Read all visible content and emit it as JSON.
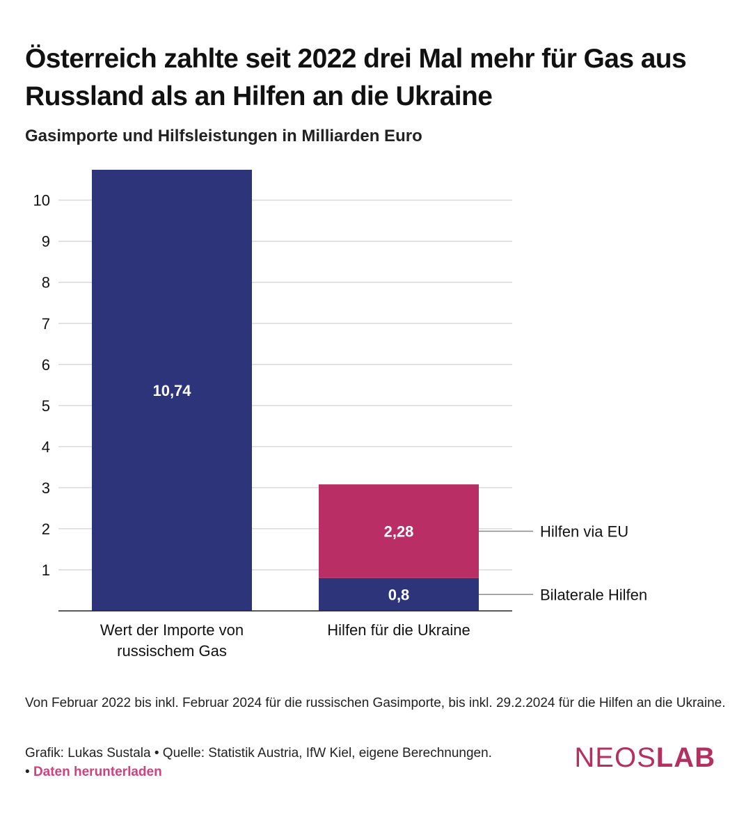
{
  "header": {
    "title": "Österreich zahlte seit 2022 drei Mal mehr für Gas aus Russland als an Hilfen an die Ukraine",
    "subtitle": "Gasimporte und Hilfsleistungen in Milliarden Euro"
  },
  "chart_data": {
    "type": "bar",
    "stacked": true,
    "unit": "Milliarden Euro",
    "categories": [
      [
        "Wert der Importe von",
        "russischem Gas"
      ],
      [
        "Hilfen für die Ukraine"
      ]
    ],
    "series": [
      {
        "name": "Bilaterale Hilfen",
        "color": "#2d3479",
        "values": [
          null,
          0.8
        ],
        "labels": [
          "",
          "0,8"
        ]
      },
      {
        "name": "Hilfen via EU",
        "color": "#b82e65",
        "values": [
          null,
          2.28
        ],
        "labels": [
          "",
          "2,28"
        ]
      },
      {
        "name": "",
        "color": "#2d3479",
        "values": [
          10.74,
          null
        ],
        "labels": [
          "10,74",
          ""
        ]
      }
    ],
    "y_ticks": [
      1,
      2,
      3,
      4,
      5,
      6,
      7,
      8,
      9,
      10
    ],
    "ylim": [
      0,
      10.74
    ],
    "grid": true
  },
  "footer": {
    "note": "Von Februar 2022 bis inkl. Februar 2024 für die russischen Gasimporte, bis inkl. 29.2.2024 für die Hilfen an die Ukraine.",
    "credit": "Grafik: Lukas Sustala • Quelle: Statistik Austria, IfW Kiel, eigene Berechnungen.",
    "bullet": "• ",
    "download_label": "Daten herunterladen"
  },
  "brand": {
    "logo_part1": "NEOS",
    "logo_part2": "LAB",
    "color": "#b5305f"
  }
}
